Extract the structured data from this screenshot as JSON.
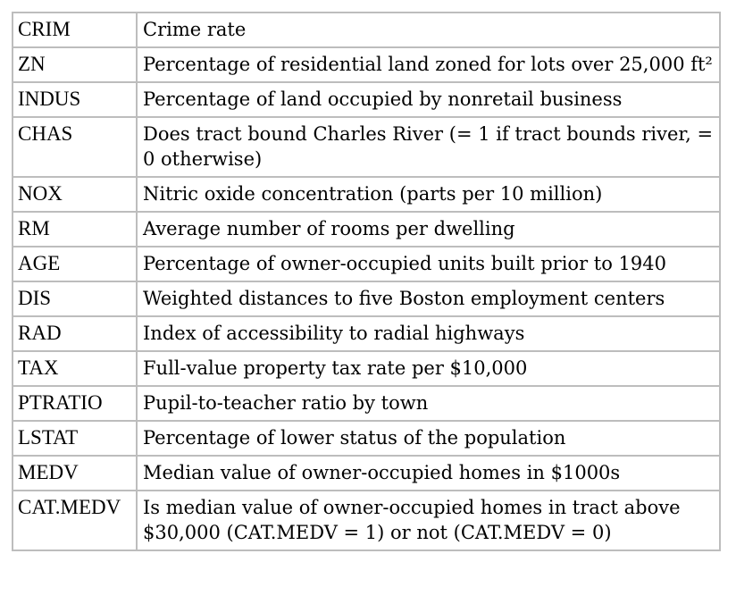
{
  "rows": [
    {
      "variable": "CRIM",
      "description": "Crime rate"
    },
    {
      "variable": "ZN",
      "description": "Percentage of residential land zoned for lots over 25,000 ft²"
    },
    {
      "variable": "INDUS",
      "description": "Percentage of land occupied by nonretail business"
    },
    {
      "variable": "CHAS",
      "description": "Does tract bound Charles River (= 1 if tract bounds river, = 0 otherwise)"
    },
    {
      "variable": "NOX",
      "description": "Nitric oxide concentration (parts per 10 million)"
    },
    {
      "variable": "RM",
      "description": "Average number of rooms per dwelling"
    },
    {
      "variable": "AGE",
      "description": "Percentage of owner-occupied units built prior to 1940"
    },
    {
      "variable": "DIS",
      "description": "Weighted distances to five Boston employment centers"
    },
    {
      "variable": "RAD",
      "description": "Index of accessibility to radial highways"
    },
    {
      "variable": "TAX",
      "description": "Full-value property tax rate per $10,000"
    },
    {
      "variable": "PTRATIO",
      "description": "Pupil-to-teacher ratio by town"
    },
    {
      "variable": "LSTAT",
      "description": "Percentage of lower status of the population"
    },
    {
      "variable": "MEDV",
      "description": "Median value of owner-occupied homes in $1000s"
    },
    {
      "variable": "CAT.MEDV",
      "description": "Is median value of owner-occupied homes in tract above $30,000 (CAT.MEDV = 1) or not (CAT.MEDV = 0)"
    }
  ]
}
